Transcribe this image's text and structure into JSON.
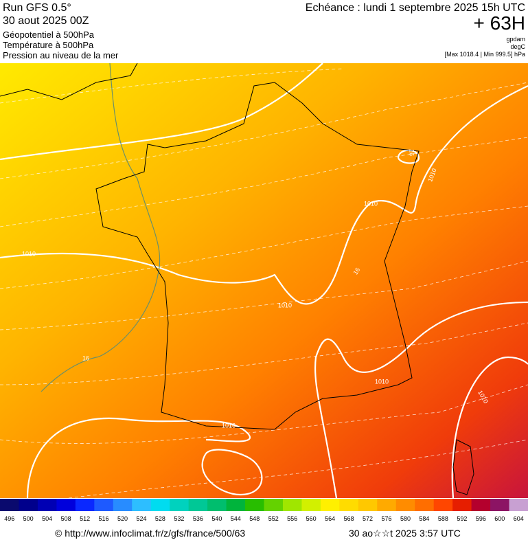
{
  "header": {
    "run": "Run GFS 0.5°",
    "date": "30 aout 2025 00Z",
    "field": "Géopotentiel à 500hPa",
    "field2": "Température à 500hPa",
    "field3": "Pression au niveau de la mer",
    "echeance": "Echéance : lundi 1 septembre 2025 15h UTC",
    "lead": "+ 63H",
    "unit1": "gpdam",
    "unit2": "degC",
    "minmax": "[Max 1018.4 | Min 999.5] hPa"
  },
  "map": {
    "contour_labels": [
      "1010",
      "1010",
      "1010",
      "1010",
      "1010",
      "1010",
      "1016",
      "16",
      "16",
      "16"
    ]
  },
  "scale": {
    "labels": [
      496,
      500,
      504,
      508,
      512,
      516,
      520,
      524,
      528,
      532,
      536,
      540,
      544,
      548,
      552,
      556,
      560,
      564,
      568,
      572,
      576,
      580,
      584,
      588,
      592,
      596,
      600,
      604
    ],
    "colors": [
      "#0a0a6e",
      "#00008c",
      "#0000b4",
      "#0000dc",
      "#0a28ff",
      "#1e5aff",
      "#288cff",
      "#2dbeff",
      "#00dcf0",
      "#00d2be",
      "#00c896",
      "#00be6e",
      "#00b43c",
      "#28be00",
      "#64d200",
      "#a0e600",
      "#d2f000",
      "#fff000",
      "#ffdc00",
      "#ffc800",
      "#ffaa00",
      "#ff8c00",
      "#ff6e00",
      "#ff4600",
      "#e61e00",
      "#b4002d",
      "#8c1464",
      "#c8a0d2"
    ]
  },
  "footer": {
    "url": "© http://www.infoclimat.fr/z/gfs/france/500/63",
    "time": "30 ao☆☆t 2025  3:57 UTC"
  }
}
